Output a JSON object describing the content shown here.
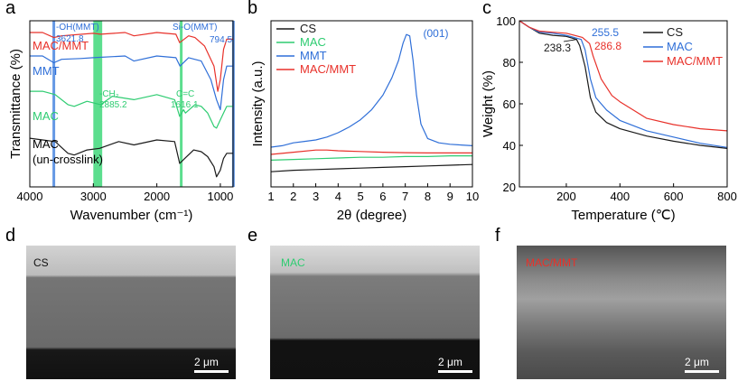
{
  "panel_labels": [
    "a",
    "b",
    "c",
    "d",
    "e",
    "f"
  ],
  "colors": {
    "black": "#1a1a1a",
    "green": "#2ecc71",
    "blue": "#2f6fd8",
    "red": "#e8312a",
    "band_blue": "#4a86e0",
    "band_green": "#3fd87a"
  },
  "chart_data": [
    {
      "id": "a",
      "type": "line",
      "xlabel": "Wavenumber (cm⁻¹)",
      "ylabel": "Transmittance (%)",
      "xlim": [
        4000,
        800
      ],
      "x_reversed": true,
      "xticks": [
        4000,
        3000,
        2000,
        1000
      ],
      "y_ticks_shown": false,
      "series": [
        {
          "name": "MAC/MMT",
          "color": "red",
          "label_pos": "left",
          "points": [
            [
              4000,
              0.9
            ],
            [
              3800,
              0.9
            ],
            [
              3621.8,
              0.87
            ],
            [
              3500,
              0.88
            ],
            [
              3000,
              0.895
            ],
            [
              2885,
              0.89
            ],
            [
              2500,
              0.9
            ],
            [
              2360,
              0.88
            ],
            [
              2000,
              0.9
            ],
            [
              1700,
              0.89
            ],
            [
              1640,
              0.84
            ],
            [
              1500,
              0.88
            ],
            [
              1400,
              0.87
            ],
            [
              1250,
              0.82
            ],
            [
              1100,
              0.7
            ],
            [
              1040,
              0.55
            ],
            [
              1000,
              0.62
            ],
            [
              950,
              0.8
            ],
            [
              900,
              0.86
            ],
            [
              800,
              0.86
            ]
          ]
        },
        {
          "name": "MMT",
          "color": "blue",
          "label_pos": "left",
          "points": [
            [
              4000,
              0.76
            ],
            [
              3800,
              0.76
            ],
            [
              3621.8,
              0.72
            ],
            [
              3500,
              0.74
            ],
            [
              3200,
              0.745
            ],
            [
              3000,
              0.75
            ],
            [
              2500,
              0.76
            ],
            [
              2360,
              0.73
            ],
            [
              2000,
              0.76
            ],
            [
              1700,
              0.75
            ],
            [
              1635,
              0.7
            ],
            [
              1500,
              0.75
            ],
            [
              1300,
              0.73
            ],
            [
              1150,
              0.62
            ],
            [
              1060,
              0.5
            ],
            [
              1000,
              0.44
            ],
            [
              950,
              0.62
            ],
            [
              900,
              0.7
            ],
            [
              800,
              0.7
            ]
          ]
        },
        {
          "name": "MAC",
          "color": "green",
          "label_pos": "left",
          "points": [
            [
              4000,
              0.55
            ],
            [
              3800,
              0.55
            ],
            [
              3600,
              0.53
            ],
            [
              3400,
              0.47
            ],
            [
              3300,
              0.46
            ],
            [
              3100,
              0.49
            ],
            [
              2885,
              0.47
            ],
            [
              2700,
              0.52
            ],
            [
              2360,
              0.5
            ],
            [
              2000,
              0.53
            ],
            [
              1720,
              0.5
            ],
            [
              1640,
              0.4
            ],
            [
              1580,
              0.44
            ],
            [
              1550,
              0.42
            ],
            [
              1400,
              0.47
            ],
            [
              1300,
              0.46
            ],
            [
              1200,
              0.42
            ],
            [
              1100,
              0.34
            ],
            [
              1060,
              0.33
            ],
            [
              1000,
              0.38
            ],
            [
              900,
              0.46
            ],
            [
              800,
              0.46
            ]
          ]
        },
        {
          "name": "MAC (un-crosslink)",
          "color": "black",
          "label_pos": "left",
          "points": [
            [
              4000,
              0.27
            ],
            [
              3800,
              0.26
            ],
            [
              3600,
              0.25
            ],
            [
              3400,
              0.18
            ],
            [
              3300,
              0.17
            ],
            [
              3100,
              0.2
            ],
            [
              2900,
              0.21
            ],
            [
              2600,
              0.25
            ],
            [
              2360,
              0.23
            ],
            [
              2000,
              0.26
            ],
            [
              1720,
              0.25
            ],
            [
              1640,
              0.12
            ],
            [
              1560,
              0.15
            ],
            [
              1420,
              0.2
            ],
            [
              1300,
              0.19
            ],
            [
              1200,
              0.16
            ],
            [
              1100,
              0.1
            ],
            [
              1060,
              0.04
            ],
            [
              1000,
              0.08
            ],
            [
              950,
              0.15
            ],
            [
              900,
              0.18
            ],
            [
              800,
              0.18
            ]
          ]
        }
      ],
      "bands": [
        {
          "center": 3621.8,
          "color": "band_blue"
        },
        {
          "from": 3000,
          "to": 2860,
          "color": "band_green"
        },
        {
          "center": 1616.1,
          "color": "band_green"
        },
        {
          "center": 794.5,
          "color": "band_blue"
        }
      ],
      "annotations": [
        {
          "text": "-OH(MMT)",
          "color": "blue"
        },
        {
          "text": "3621.8",
          "color": "blue"
        },
        {
          "text": "Si-O(MMT)",
          "color": "blue"
        },
        {
          "text": "794.5",
          "color": "blue"
        },
        {
          "text": "-CH₂",
          "color": "green"
        },
        {
          "text": "2885.2",
          "color": "green"
        },
        {
          "text": "C=C",
          "color": "green"
        },
        {
          "text": "1616.1",
          "color": "green"
        }
      ]
    },
    {
      "id": "b",
      "type": "line",
      "xlabel": "2θ (degree)",
      "ylabel": "Intensity (a.u.)",
      "xlim": [
        1,
        10
      ],
      "xticks": [
        1,
        2,
        3,
        4,
        5,
        6,
        7,
        8,
        9,
        10
      ],
      "y_ticks_shown": false,
      "legend": "top-left",
      "series": [
        {
          "name": "CS",
          "color": "black",
          "points": [
            [
              1,
              0.03
            ],
            [
              2,
              0.04
            ],
            [
              3,
              0.045
            ],
            [
              4,
              0.05
            ],
            [
              5,
              0.055
            ],
            [
              6,
              0.06
            ],
            [
              7,
              0.065
            ],
            [
              8,
              0.07
            ],
            [
              9,
              0.075
            ],
            [
              10,
              0.08
            ]
          ]
        },
        {
          "name": "MAC",
          "color": "green",
          "points": [
            [
              1,
              0.11
            ],
            [
              2,
              0.115
            ],
            [
              3,
              0.12
            ],
            [
              4,
              0.125
            ],
            [
              5,
              0.13
            ],
            [
              6,
              0.13
            ],
            [
              7,
              0.135
            ],
            [
              8,
              0.135
            ],
            [
              9,
              0.14
            ],
            [
              10,
              0.14
            ]
          ]
        },
        {
          "name": "MMT",
          "color": "blue",
          "points": [
            [
              1,
              0.2
            ],
            [
              1.5,
              0.21
            ],
            [
              2,
              0.23
            ],
            [
              2.5,
              0.24
            ],
            [
              3,
              0.25
            ],
            [
              3.5,
              0.27
            ],
            [
              4,
              0.3
            ],
            [
              4.5,
              0.34
            ],
            [
              5,
              0.39
            ],
            [
              5.5,
              0.46
            ],
            [
              6,
              0.56
            ],
            [
              6.4,
              0.68
            ],
            [
              6.7,
              0.8
            ],
            [
              6.9,
              0.92
            ],
            [
              7.05,
              0.98
            ],
            [
              7.2,
              0.97
            ],
            [
              7.35,
              0.8
            ],
            [
              7.5,
              0.56
            ],
            [
              7.7,
              0.36
            ],
            [
              8,
              0.26
            ],
            [
              8.5,
              0.23
            ],
            [
              9,
              0.22
            ],
            [
              9.5,
              0.215
            ],
            [
              10,
              0.21
            ]
          ]
        },
        {
          "name": "MAC/MMT",
          "color": "red",
          "points": [
            [
              1,
              0.15
            ],
            [
              2,
              0.165
            ],
            [
              3,
              0.18
            ],
            [
              3.5,
              0.18
            ],
            [
              4,
              0.175
            ],
            [
              5,
              0.17
            ],
            [
              6,
              0.165
            ],
            [
              7,
              0.162
            ],
            [
              8,
              0.16
            ],
            [
              9,
              0.16
            ],
            [
              10,
              0.16
            ]
          ]
        }
      ],
      "annotations": [
        {
          "text": "(001)",
          "color": "blue",
          "x": 7.8
        }
      ]
    },
    {
      "id": "c",
      "type": "line",
      "xlabel": "Temperature (℃)",
      "ylabel": "Weight (%)",
      "xlim": [
        25,
        800
      ],
      "ylim": [
        20,
        100
      ],
      "xticks": [
        200,
        400,
        600,
        800
      ],
      "yticks": [
        20,
        40,
        60,
        80,
        100
      ],
      "legend": "top-right",
      "series": [
        {
          "name": "CS",
          "color": "black",
          "points": [
            [
              25,
              100
            ],
            [
              60,
              97
            ],
            [
              100,
              94
            ],
            [
              150,
              93
            ],
            [
              200,
              92.5
            ],
            [
              238.3,
              91
            ],
            [
              250,
              88
            ],
            [
              270,
              78
            ],
            [
              290,
              63
            ],
            [
              310,
              56
            ],
            [
              350,
              51
            ],
            [
              400,
              48
            ],
            [
              500,
              44.5
            ],
            [
              600,
              42
            ],
            [
              700,
              40
            ],
            [
              800,
              38.5
            ]
          ]
        },
        {
          "name": "MAC",
          "color": "blue",
          "points": [
            [
              25,
              100
            ],
            [
              60,
              97
            ],
            [
              100,
              94.5
            ],
            [
              150,
              94
            ],
            [
              200,
              93
            ],
            [
              255.5,
              91
            ],
            [
              270,
              86
            ],
            [
              290,
              72
            ],
            [
              310,
              63
            ],
            [
              350,
              57
            ],
            [
              400,
              52
            ],
            [
              500,
              47
            ],
            [
              600,
              44
            ],
            [
              700,
              41
            ],
            [
              800,
              39
            ]
          ]
        },
        {
          "name": "MAC/MMT",
          "color": "red",
          "points": [
            [
              25,
              100
            ],
            [
              60,
              97
            ],
            [
              100,
              95
            ],
            [
              150,
              94.5
            ],
            [
              200,
              94
            ],
            [
              260,
              92
            ],
            [
              286.8,
              89
            ],
            [
              300,
              83
            ],
            [
              330,
              72
            ],
            [
              370,
              64
            ],
            [
              400,
              61
            ],
            [
              450,
              57
            ],
            [
              500,
              53
            ],
            [
              600,
              50
            ],
            [
              700,
              48
            ],
            [
              800,
              47
            ]
          ]
        }
      ],
      "annotations": [
        {
          "text": "238.3",
          "color": "black"
        },
        {
          "text": "255.5",
          "color": "blue"
        },
        {
          "text": "286.8",
          "color": "red"
        }
      ]
    }
  ],
  "sem_panels": [
    {
      "id": "d",
      "label": "CS",
      "label_color": "#111111",
      "scale": "2 μm"
    },
    {
      "id": "e",
      "label": "MAC",
      "label_color": "#2ecc71",
      "scale": "2 μm"
    },
    {
      "id": "f",
      "label": "MAC/MMT",
      "label_color": "#e8312a",
      "scale": "2 μm"
    }
  ]
}
